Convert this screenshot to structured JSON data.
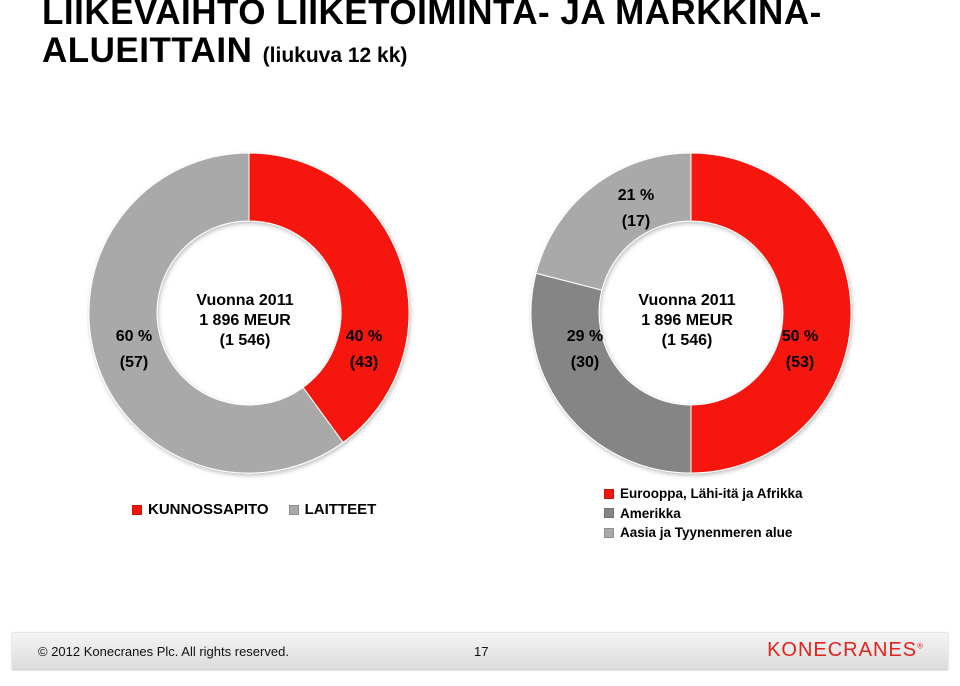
{
  "title": {
    "line1": "LIIKEVAIHTO LIIKETOIMINTA- JA MARKKINA-",
    "line2": "ALUEITTAIN",
    "subtitle": "(liukuva 12 kk)"
  },
  "chart_data": [
    {
      "type": "pie",
      "style": "donut",
      "center_text": [
        "Vuonna 2011",
        "1 896 MEUR",
        "(1 546)"
      ],
      "slices": [
        {
          "name": "KUNNOSSAPITO",
          "value": 40,
          "label": "40 %",
          "prev_label": "(43)",
          "color": "#f5140c"
        },
        {
          "name": "LAITTEET",
          "value": 60,
          "label": "60 %",
          "prev_label": "(57)",
          "color": "#a9a9a9"
        }
      ]
    },
    {
      "type": "pie",
      "style": "donut",
      "center_text": [
        "Vuonna 2011",
        "1 896 MEUR",
        "(1 546)"
      ],
      "slices": [
        {
          "name": "Eurooppa, Lähi-itä ja Afrikka",
          "value": 50,
          "label": "50 %",
          "prev_label": "(53)",
          "color": "#f5140c"
        },
        {
          "name": "Amerikka",
          "value": 29,
          "label": "29 %",
          "prev_label": "(30)",
          "color": "#858585"
        },
        {
          "name": "Aasia ja Tyynenmeren alue",
          "value": 21,
          "label": "21 %",
          "prev_label": "(17)",
          "color": "#a9a9a9"
        }
      ]
    }
  ],
  "footer": {
    "copyright": "© 2012 Konecranes Plc. All rights reserved.",
    "page_number": "17",
    "logo_text": "KONECRANES",
    "logo_mark": "®"
  }
}
